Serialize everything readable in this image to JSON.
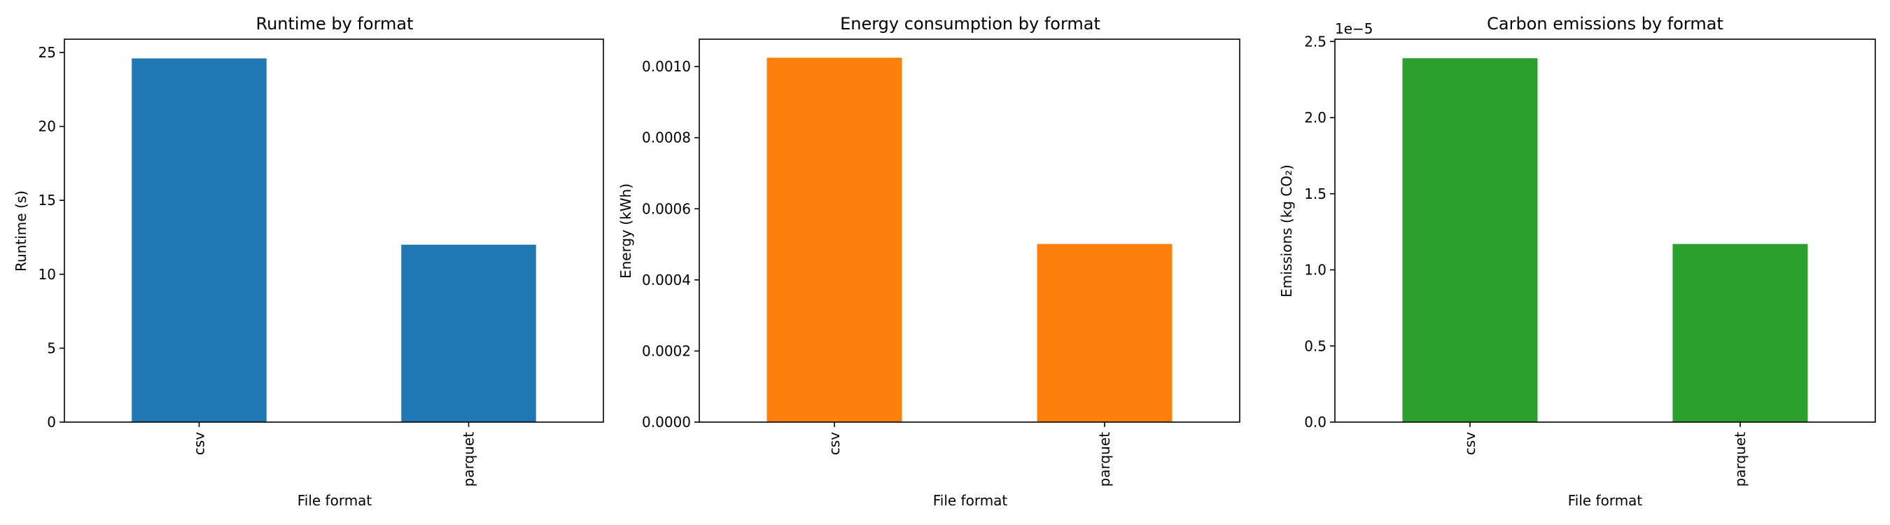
{
  "chart_data": [
    {
      "type": "bar",
      "title": "Runtime by format",
      "xlabel": "File format",
      "ylabel": "Runtime (s)",
      "categories": [
        "csv",
        "parquet"
      ],
      "values": [
        24.6,
        12.0
      ],
      "ylim": [
        0,
        25.9
      ],
      "yticks": [
        0,
        5,
        10,
        15,
        20,
        25
      ],
      "ytick_labels": [
        "0",
        "5",
        "10",
        "15",
        "20",
        "25"
      ],
      "offset_label": "",
      "color": "#1f77b4",
      "grid": false,
      "legend": "none"
    },
    {
      "type": "bar",
      "title": "Energy consumption by format",
      "xlabel": "File format",
      "ylabel": "Energy (kWh)",
      "categories": [
        "csv",
        "parquet"
      ],
      "values": [
        0.001025,
        0.000501
      ],
      "ylim": [
        0,
        0.001077
      ],
      "yticks": [
        0,
        0.0002,
        0.0004,
        0.0006,
        0.0008,
        0.001
      ],
      "ytick_labels": [
        "0.0000",
        "0.0002",
        "0.0004",
        "0.0006",
        "0.0008",
        "0.0010"
      ],
      "offset_label": "",
      "color": "#ff7f0e",
      "grid": false,
      "legend": "none"
    },
    {
      "type": "bar",
      "title": "Carbon emissions by format",
      "xlabel": "File format",
      "ylabel": "Emissions (kg CO₂)",
      "categories": [
        "csv",
        "parquet"
      ],
      "values": [
        2.39e-05,
        1.17e-05
      ],
      "ylim": [
        0,
        2.515e-05
      ],
      "yticks": [
        0,
        5e-06,
        1e-05,
        1.5e-05,
        2e-05,
        2.5e-05
      ],
      "ytick_labels": [
        "0.0",
        "0.5",
        "1.0",
        "1.5",
        "2.0",
        "2.5"
      ],
      "offset_label": "1e−5",
      "color": "#2ca02c",
      "grid": false,
      "legend": "none"
    }
  ]
}
